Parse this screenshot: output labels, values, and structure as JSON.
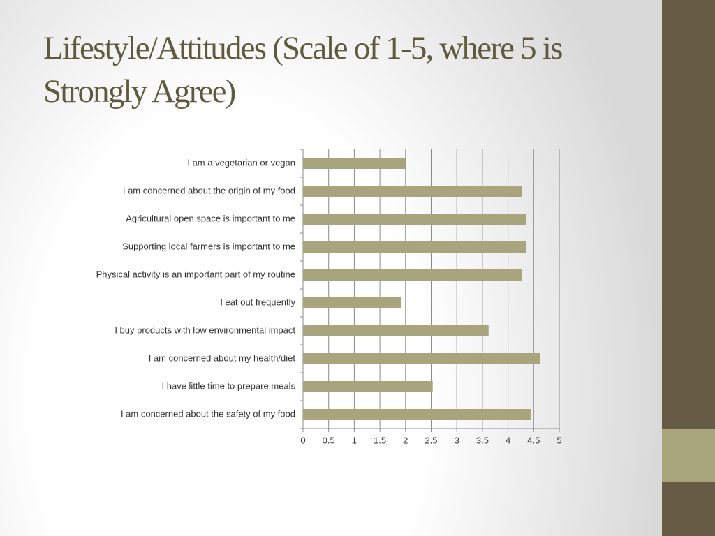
{
  "chart_data": {
    "type": "bar",
    "orientation": "horizontal",
    "title": "Lifestyle/Attitudes (Scale of 1-5, where 5 is Strongly Agree)",
    "categories": [
      "I am a vegetarian or vegan",
      "I am concerned about the origin of my food",
      "Agricultural open space is important to me",
      "Supporting local farmers is important to me",
      "Physical activity is an important part of my routine",
      "I eat out frequently",
      "I buy products with low environmental impact",
      "I am concerned about my health/diet",
      "I have little time to prepare meals",
      "I am concerned about the safety of my food"
    ],
    "values": [
      2.0,
      4.27,
      4.36,
      4.36,
      4.27,
      1.91,
      3.62,
      4.63,
      2.53,
      4.44
    ],
    "color": "#a8a47d",
    "xlim": [
      0,
      5
    ],
    "xticks": [
      0,
      0.5,
      1,
      1.5,
      2,
      2.5,
      3,
      3.5,
      4,
      4.5,
      5
    ],
    "grid": true
  }
}
